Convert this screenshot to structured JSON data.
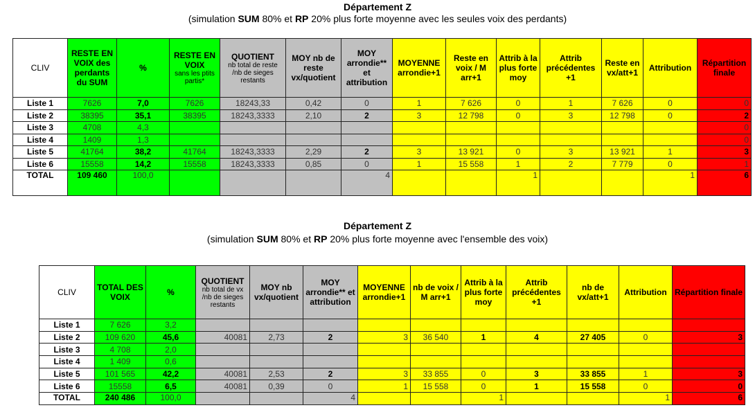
{
  "section1": {
    "title": "Département Z",
    "subtitle": [
      "(simulation ",
      "SUM",
      " 80% et ",
      "RP",
      " 20% plus forte moyenne  avec les seules voix des perdants)"
    ],
    "headers": [
      {
        "main": "CLIV",
        "sub": ""
      },
      {
        "main": "RESTE EN VOIX des perdants du SUM",
        "sub": ""
      },
      {
        "main": "%",
        "sub": ""
      },
      {
        "main": "RESTE EN VOIX",
        "sub": "sans les ptits partis*"
      },
      {
        "main": "QUOTIENT",
        "sub": "nb total de reste /nb de sieges restants"
      },
      {
        "main": "MOY nb de reste vx/quotient",
        "sub": ""
      },
      {
        "main": "MOY arrondie** et attribution",
        "sub": ""
      },
      {
        "main": "MOYENNE arrondie+1",
        "sub": ""
      },
      {
        "main": "Reste en voix / M arr+1",
        "sub": ""
      },
      {
        "main": "Attrib à la plus forte moy",
        "sub": ""
      },
      {
        "main": "Attrib précédentes +1",
        "sub": ""
      },
      {
        "main": "Reste en vx/att+1",
        "sub": ""
      },
      {
        "main": "Attribution",
        "sub": ""
      },
      {
        "main": "Répartition finale",
        "sub": ""
      }
    ],
    "rows": [
      [
        "Liste 1",
        "7626",
        "7,0",
        "7626",
        "18243,33",
        "0,42",
        "0",
        "1",
        "7 626",
        "0",
        "1",
        "7 626",
        "0",
        "0"
      ],
      [
        "Liste 2",
        "38395",
        "35,1",
        "38395",
        "18243,3333",
        "2,10",
        "2",
        "3",
        "12 798",
        "0",
        "3",
        "12 798",
        "0",
        "2"
      ],
      [
        "Liste 3",
        "4708",
        "4,3",
        "",
        "",
        "",
        "",
        "",
        "",
        "",
        "",
        "",
        "",
        "0"
      ],
      [
        "Liste 4",
        "1409",
        "1,3",
        "",
        "",
        "",
        "",
        "",
        "",
        "",
        "",
        "",
        "",
        "0"
      ],
      [
        "Liste 5",
        "41764",
        "38,2",
        "41764",
        "18243,3333",
        "2,29",
        "2",
        "3",
        "13 921",
        "0",
        "3",
        "13 921",
        "1",
        "3"
      ],
      [
        "Liste 6",
        "15558",
        "14,2",
        "15558",
        "18243,3333",
        "0,85",
        "0",
        "1",
        "15 558",
        "1",
        "2",
        "7 779",
        "0",
        "1"
      ],
      [
        "TOTAL",
        "109 460",
        "100,0",
        "",
        "",
        "",
        "4",
        "",
        "",
        "1",
        "",
        "",
        "1",
        "6"
      ]
    ]
  },
  "section2": {
    "title": "Département Z",
    "subtitle": [
      "(simulation ",
      "SUM",
      " 80% et ",
      "RP",
      " 20% plus forte moyenne  avec l'ensemble des voix)"
    ],
    "headers": [
      {
        "main": "CLIV",
        "sub": ""
      },
      {
        "main": "TOTAL DES VOIX",
        "sub": ""
      },
      {
        "main": "%",
        "sub": ""
      },
      {
        "main": "QUOTIENT",
        "sub": "nb total de vx /nb de sieges restants"
      },
      {
        "main": "MOY nb vx/quotient",
        "sub": ""
      },
      {
        "main": "MOY arrondie** et attribution",
        "sub": ""
      },
      {
        "main": "MOYENNE arrondie+1",
        "sub": ""
      },
      {
        "main": "nb de voix / M arr+1",
        "sub": ""
      },
      {
        "main": "Attrib à la plus forte moy",
        "sub": ""
      },
      {
        "main": "Attrib précédentes +1",
        "sub": ""
      },
      {
        "main": "nb de vx/att+1",
        "sub": ""
      },
      {
        "main": "Attribution",
        "sub": ""
      },
      {
        "main": "Répartition finale",
        "sub": ""
      }
    ],
    "rows": [
      [
        "Liste 1",
        "7 626",
        "3,2",
        "",
        "",
        "",
        "",
        "",
        "",
        "",
        "",
        "",
        ""
      ],
      [
        "Liste 2",
        "109 620",
        "45,6",
        "40081",
        "2,73",
        "2",
        "3",
        "36 540",
        "1",
        "4",
        "27 405",
        "0",
        "3"
      ],
      [
        "Liste 3",
        "4 708",
        "2,0",
        "",
        "",
        "",
        "",
        "",
        "",
        "",
        "",
        "",
        ""
      ],
      [
        "Liste 4",
        "1 409",
        "0,6",
        "",
        "",
        "",
        "",
        "",
        "",
        "",
        "",
        "",
        ""
      ],
      [
        "Liste 5",
        "101 565",
        "42,2",
        "40081",
        "2,53",
        "2",
        "3",
        "33 855",
        "0",
        "3",
        "33 855",
        "1",
        "3"
      ],
      [
        "Liste 6",
        "15558",
        "6,5",
        "40081",
        "0,39",
        "0",
        "1",
        "15 558",
        "0",
        "1",
        "15 558",
        "0",
        "0"
      ],
      [
        "TOTAL",
        "240 486",
        "100,0",
        "",
        "",
        "4",
        "",
        "",
        "1",
        "",
        "",
        "1",
        "6"
      ]
    ]
  },
  "colors": {
    "green": "#00ff00",
    "gray": "#c0c0c0",
    "yellow": "#ffff00",
    "red": "#ff0000"
  }
}
